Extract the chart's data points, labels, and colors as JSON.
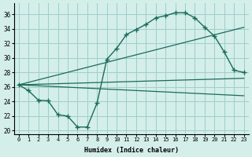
{
  "xlabel": "Humidex (Indice chaleur)",
  "bg_color": "#d4eeea",
  "grid_color": "#9ecfcb",
  "line_color": "#1a6b5a",
  "xlim": [
    -0.5,
    23.5
  ],
  "ylim": [
    19.5,
    37.5
  ],
  "xticks": [
    0,
    1,
    2,
    3,
    4,
    5,
    6,
    7,
    8,
    9,
    10,
    11,
    12,
    13,
    14,
    15,
    16,
    17,
    18,
    19,
    20,
    21,
    22,
    23
  ],
  "yticks": [
    20,
    22,
    24,
    26,
    28,
    30,
    32,
    34,
    36
  ],
  "main_x": [
    0,
    1,
    2,
    3,
    4,
    5,
    6,
    7,
    8,
    9,
    10,
    11,
    12,
    13,
    14,
    15,
    16,
    17,
    18,
    19,
    20,
    21,
    22,
    23
  ],
  "main_y": [
    26.3,
    25.5,
    24.2,
    24.1,
    22.2,
    22.0,
    20.5,
    20.5,
    23.8,
    29.8,
    31.3,
    33.2,
    33.9,
    34.6,
    35.5,
    35.8,
    36.2,
    36.2,
    35.5,
    34.2,
    33.0,
    30.8,
    28.3,
    28.0
  ],
  "straight_lines": [
    {
      "x0": 0,
      "y0": 26.3,
      "x1": 23,
      "y1": 34.2
    },
    {
      "x0": 0,
      "y0": 26.3,
      "x1": 23,
      "y1": 27.2
    },
    {
      "x0": 0,
      "y0": 26.3,
      "x1": 23,
      "y1": 24.8
    }
  ]
}
